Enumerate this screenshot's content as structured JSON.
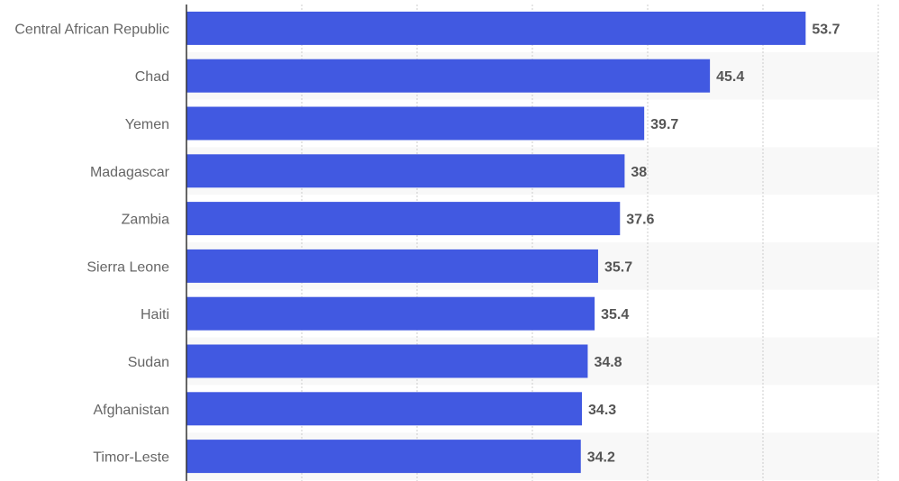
{
  "chart_data": {
    "type": "bar",
    "orientation": "horizontal",
    "categories": [
      "Central African Republic",
      "Chad",
      "Yemen",
      "Madagascar",
      "Zambia",
      "Sierra Leone",
      "Haiti",
      "Sudan",
      "Afghanistan",
      "Timor-Leste"
    ],
    "values": [
      53.7,
      45.4,
      39.7,
      38,
      37.6,
      35.7,
      35.4,
      34.8,
      34.3,
      34.2
    ],
    "value_labels": [
      "53.7",
      "45.4",
      "39.7",
      "38",
      "37.6",
      "35.7",
      "35.4",
      "34.8",
      "34.3",
      "34.2"
    ],
    "xlim": [
      0,
      60
    ],
    "x_gridlines": [
      10,
      20,
      30,
      40,
      50,
      60
    ],
    "grid": true,
    "title": "",
    "xlabel": "",
    "ylabel": "",
    "colors": {
      "bar": "#4159e1",
      "band": "#f8f8f8",
      "grid": "#cccccc",
      "axis": "#333333",
      "category_text": "#666666",
      "value_text": "#555555"
    }
  }
}
